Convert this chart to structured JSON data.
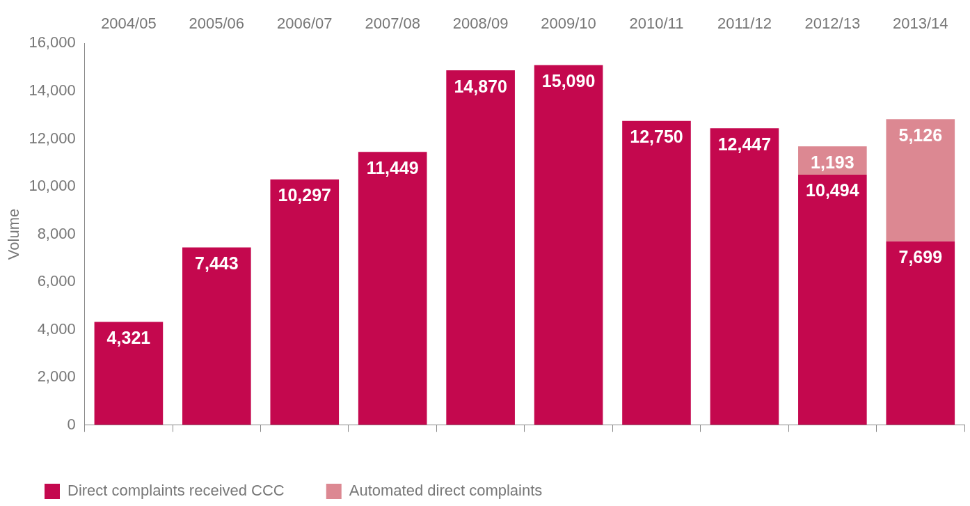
{
  "chart_data": {
    "type": "bar",
    "stacked": true,
    "ylabel": "Volume",
    "categories": [
      "2004/05",
      "2005/06",
      "2006/07",
      "2007/08",
      "2008/09",
      "2009/10",
      "2010/11",
      "2011/12",
      "2012/13",
      "2013/14"
    ],
    "series": [
      {
        "name": "Direct complaints received CCC",
        "color": "#c4084e",
        "values": [
          4321,
          7443,
          10297,
          11449,
          14870,
          15090,
          12750,
          12447,
          10494,
          7699
        ],
        "value_labels": [
          "4,321",
          "7,443",
          "10,297",
          "11,449",
          "14,870",
          "15,090",
          "12,750",
          "12,447",
          "10,494",
          "7,699"
        ]
      },
      {
        "name": "Automated direct complaints",
        "color": "#dc8892",
        "values": [
          null,
          null,
          null,
          null,
          null,
          null,
          null,
          null,
          1193,
          5126
        ],
        "value_labels": [
          null,
          null,
          null,
          null,
          null,
          null,
          null,
          null,
          "1,193",
          "5,126"
        ]
      }
    ],
    "ylim": [
      0,
      16000
    ],
    "yticks": [
      0,
      {
        "value": 2000,
        "label": "2,000"
      },
      {
        "value": 4000,
        "label": "4,000"
      },
      {
        "value": 6000,
        "label": "6,000"
      },
      {
        "value": 8000,
        "label": "8,000"
      },
      {
        "value": 10000,
        "label": "10,000"
      },
      {
        "value": 12000,
        "label": "12,000"
      },
      {
        "value": 14000,
        "label": "14,000"
      },
      {
        "value": 16000,
        "label": "16,000"
      }
    ],
    "grid": false,
    "legend": "bottom left"
  }
}
